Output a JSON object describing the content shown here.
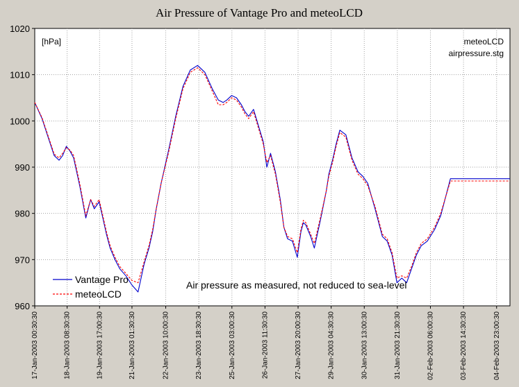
{
  "chart_data": {
    "type": "line",
    "title": "Air Pressure of Vantage Pro and meteoLCD",
    "ylabel": "",
    "xlabel": "",
    "unit_label": "[hPa]",
    "corner_notes": [
      "meteoLCD",
      "airpressure.stg"
    ],
    "annotation": "Air pressure as measured, not reduced to sea-level",
    "ylim": [
      960,
      1020
    ],
    "yticks": [
      960,
      970,
      980,
      990,
      1000,
      1010,
      1020
    ],
    "xlim": [
      0,
      19.55
    ],
    "x_unit": "days since 17-Jan-2003 00:30:30",
    "xticks": [
      {
        "t": 0.0,
        "label": "17-Jan-2003 00:30:30"
      },
      {
        "t": 1.333,
        "label": "18-Jan-2003 08:30:30"
      },
      {
        "t": 2.6667,
        "label": "19-Jan-2003 17:00:30"
      },
      {
        "t": 4.0,
        "label": "21-Jan-2003 01:30:30"
      },
      {
        "t": 5.3889,
        "label": "22-Jan-2003 10:00:30"
      },
      {
        "t": 6.75,
        "label": "23-Jan-2003 18:30:30"
      },
      {
        "t": 8.1111,
        "label": "25-Jan-2003 03:00:30"
      },
      {
        "t": 9.4722,
        "label": "26-Jan-2003 11:30:30"
      },
      {
        "t": 10.8333,
        "label": "27-Jan-2003 20:00:30"
      },
      {
        "t": 12.1944,
        "label": "29-Jan-2003 04:30:30"
      },
      {
        "t": 13.5556,
        "label": "30-Jan-2003 13:00:30"
      },
      {
        "t": 14.9167,
        "label": "31-Jan-2003 21:30:30"
      },
      {
        "t": 16.2778,
        "label": "02-Feb-2003 06:00:30"
      },
      {
        "t": 17.6389,
        "label": "03-Feb-2003 14:30:30"
      },
      {
        "t": 19.0,
        "label": "04-Feb-2003 23:00:30"
      }
    ],
    "grid": true,
    "legend_position": "bottom-left",
    "series": [
      {
        "name": "Vantage Pro",
        "color": "#0000cc",
        "style": "solid",
        "x": [
          0.0,
          0.3,
          0.55,
          0.8,
          1.0,
          1.15,
          1.3,
          1.45,
          1.6,
          1.85,
          2.1,
          2.3,
          2.45,
          2.65,
          2.8,
          2.95,
          3.1,
          3.3,
          3.5,
          3.75,
          4.0,
          4.25,
          4.5,
          4.7,
          4.85,
          5.0,
          5.2,
          5.5,
          5.8,
          6.1,
          6.4,
          6.7,
          7.0,
          7.3,
          7.55,
          7.75,
          7.9,
          8.1,
          8.3,
          8.5,
          8.65,
          8.8,
          9.0,
          9.2,
          9.4,
          9.55,
          9.7,
          9.9,
          10.1,
          10.25,
          10.4,
          10.6,
          10.8,
          10.95,
          11.05,
          11.15,
          11.35,
          11.5,
          11.75,
          12.0,
          12.1,
          12.25,
          12.4,
          12.55,
          12.8,
          13.05,
          13.3,
          13.5,
          13.7,
          14.0,
          14.3,
          14.5,
          14.7,
          14.9,
          15.1,
          15.3,
          15.5,
          15.7,
          15.9,
          16.15,
          16.45,
          16.7,
          16.9,
          17.1,
          17.3,
          17.45,
          17.6,
          17.75,
          17.9,
          18.05,
          18.3,
          18.6,
          18.8,
          19.0,
          19.2,
          19.4,
          19.55
        ],
        "values": [
          1004.0,
          1000.5,
          996.5,
          992.5,
          991.5,
          992.5,
          994.5,
          993.5,
          992.0,
          986.0,
          979.0,
          983.0,
          981.0,
          982.5,
          979.0,
          975.5,
          972.5,
          970.0,
          968.0,
          966.5,
          964.5,
          963.0,
          969.0,
          972.5,
          976.0,
          981.0,
          986.5,
          993.5,
          1001.0,
          1007.5,
          1011.0,
          1012.0,
          1010.5,
          1007.0,
          1004.5,
          1004.0,
          1004.5,
          1005.5,
          1005.0,
          1003.5,
          1002.0,
          1001.0,
          1002.5,
          999.0,
          995.5,
          990.0,
          993.0,
          989.0,
          983.0,
          977.0,
          974.5,
          974.0,
          970.5,
          976.0,
          978.0,
          977.5,
          975.0,
          972.5,
          978.5,
          985.0,
          988.5,
          991.5,
          995.0,
          998.0,
          997.0,
          992.0,
          989.0,
          988.0,
          986.5,
          981.0,
          975.0,
          974.0,
          971.0,
          965.0,
          966.0,
          965.0,
          968.0,
          971.0,
          973.0,
          974.0,
          976.5,
          979.5,
          983.5,
          987.5,
          987.5,
          987.5,
          987.5,
          987.5,
          987.5,
          987.5,
          987.5,
          987.5,
          987.5,
          987.5,
          987.5,
          987.5,
          987.5
        ]
      },
      {
        "name": "meteoLCD",
        "color": "#ff0000",
        "style": "dashed",
        "x": [
          0.0,
          0.3,
          0.55,
          0.8,
          1.0,
          1.15,
          1.3,
          1.45,
          1.6,
          1.85,
          2.1,
          2.3,
          2.45,
          2.65,
          2.8,
          2.95,
          3.1,
          3.3,
          3.5,
          3.75,
          4.0,
          4.25,
          4.5,
          4.7,
          4.85,
          5.0,
          5.2,
          5.5,
          5.8,
          6.1,
          6.4,
          6.7,
          7.0,
          7.3,
          7.55,
          7.75,
          7.9,
          8.1,
          8.3,
          8.5,
          8.65,
          8.8,
          9.0,
          9.2,
          9.4,
          9.55,
          9.7,
          9.9,
          10.1,
          10.25,
          10.4,
          10.6,
          10.8,
          10.95,
          11.05,
          11.15,
          11.35,
          11.5,
          11.75,
          12.0,
          12.1,
          12.25,
          12.4,
          12.55,
          12.8,
          13.05,
          13.3,
          13.5,
          13.7,
          14.0,
          14.3,
          14.5,
          14.7,
          14.9,
          15.1,
          15.3,
          15.5,
          15.7,
          15.9,
          16.15,
          16.45,
          16.7,
          16.9,
          17.1,
          17.3,
          17.45,
          17.6,
          17.75,
          17.9,
          18.05,
          18.3,
          18.6,
          18.8,
          19.0,
          19.2,
          19.4,
          19.55
        ],
        "values": [
          1004.0,
          1000.7,
          996.8,
          992.8,
          992.0,
          993.0,
          994.2,
          993.7,
          992.5,
          986.5,
          979.5,
          983.0,
          981.5,
          983.0,
          979.5,
          976.0,
          973.0,
          970.5,
          968.5,
          967.0,
          965.5,
          965.0,
          969.5,
          973.0,
          976.5,
          981.0,
          986.5,
          993.0,
          1000.5,
          1007.0,
          1010.5,
          1011.5,
          1010.0,
          1006.5,
          1003.5,
          1003.5,
          1004.0,
          1005.0,
          1004.5,
          1003.0,
          1001.5,
          1000.5,
          1002.0,
          998.5,
          995.0,
          991.0,
          992.5,
          988.5,
          982.5,
          977.0,
          975.0,
          974.5,
          971.5,
          976.5,
          978.5,
          978.0,
          975.5,
          973.5,
          979.0,
          985.0,
          988.0,
          991.0,
          994.5,
          997.5,
          996.5,
          991.5,
          988.5,
          987.5,
          986.0,
          981.5,
          975.5,
          974.5,
          971.5,
          966.0,
          966.5,
          966.0,
          968.5,
          971.5,
          973.5,
          974.5,
          977.0,
          980.0,
          983.5,
          987.0,
          987.0,
          987.0,
          987.0,
          987.0,
          987.0,
          987.0,
          987.0,
          987.0,
          987.0,
          987.0,
          987.0,
          987.0,
          987.0
        ]
      }
    ]
  }
}
